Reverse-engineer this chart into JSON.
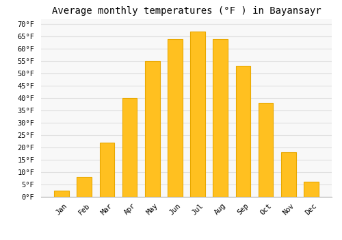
{
  "title": "Average monthly temperatures (°F ) in Bayansayr",
  "months": [
    "Jan",
    "Feb",
    "Mar",
    "Apr",
    "May",
    "Jun",
    "Jul",
    "Aug",
    "Sep",
    "Oct",
    "Nov",
    "Dec"
  ],
  "values": [
    2.5,
    8,
    22,
    40,
    55,
    64,
    67,
    64,
    53,
    38,
    18,
    6
  ],
  "bar_color": "#FFC020",
  "bar_edge_color": "#E8A800",
  "background_color": "#FFFFFF",
  "plot_bg_color": "#F8F8F8",
  "grid_color": "#E0E0E0",
  "ylim": [
    0,
    72
  ],
  "yticks": [
    0,
    5,
    10,
    15,
    20,
    25,
    30,
    35,
    40,
    45,
    50,
    55,
    60,
    65,
    70
  ],
  "ylabel_suffix": "°F",
  "title_fontsize": 10,
  "tick_fontsize": 7.5
}
